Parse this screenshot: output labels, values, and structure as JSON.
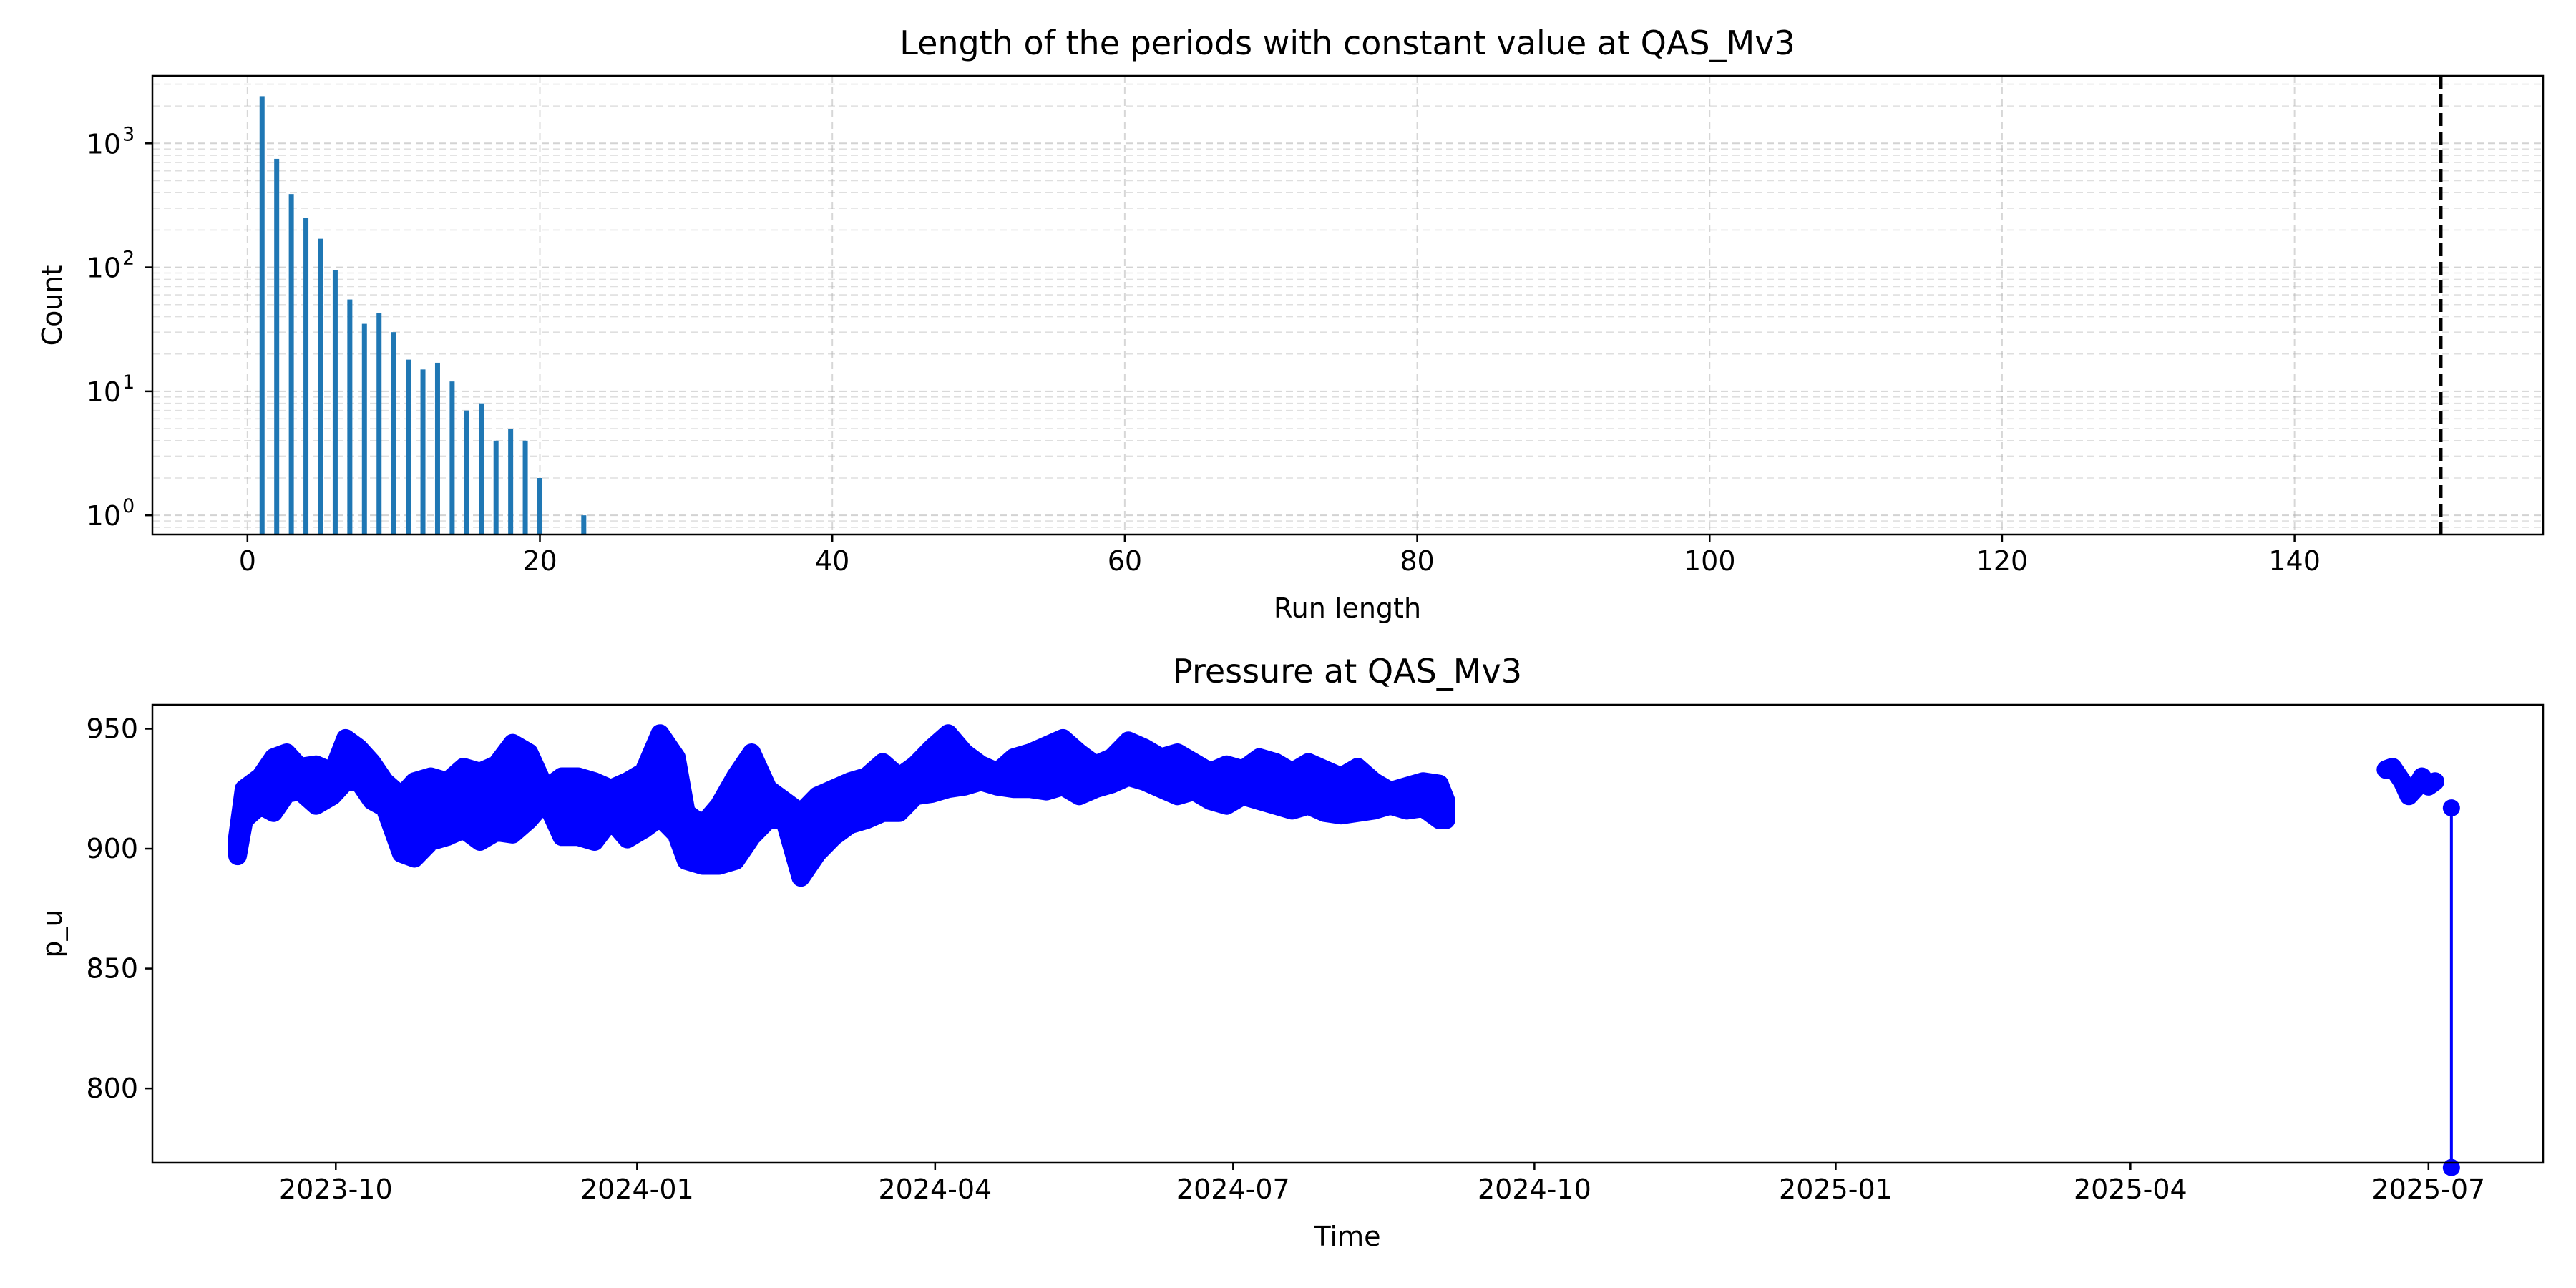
{
  "colors": {
    "bar": "#1f77b4",
    "line": "#0000ff",
    "grid": "#b0b0b0",
    "threshold": "#000000"
  },
  "chart_data": [
    {
      "type": "bar",
      "title": "Length of the periods with constant value at QAS_Mv3",
      "xlabel": "Run length",
      "ylabel": "Count",
      "yscale": "log",
      "xlim": [
        -6.5,
        157
      ],
      "ylim": [
        0.7,
        3500
      ],
      "xticks": [
        0,
        20,
        40,
        60,
        80,
        100,
        120,
        140
      ],
      "xtick_labels": [
        "0",
        "20",
        "40",
        "60",
        "80",
        "100",
        "120",
        "140"
      ],
      "yticks": [
        1,
        10,
        100,
        1000
      ],
      "ytick_labels": [
        "10",
        "10",
        "10",
        "10"
      ],
      "ytick_exponents": [
        "0",
        "1",
        "2",
        "3"
      ],
      "grid": true,
      "reference_line": {
        "x": 150,
        "style": "dashed"
      },
      "x": [
        1,
        2,
        3,
        4,
        5,
        6,
        7,
        8,
        9,
        10,
        11,
        12,
        13,
        14,
        15,
        16,
        17,
        18,
        19,
        20,
        23
      ],
      "values": [
        2400,
        750,
        390,
        250,
        170,
        95,
        55,
        35,
        43,
        30,
        18,
        15,
        17,
        12,
        7,
        8,
        4,
        5,
        4,
        2,
        1
      ]
    },
    {
      "type": "line",
      "title": "Pressure at QAS_Mv3",
      "xlabel": "Time",
      "ylabel": "p_u",
      "xlim": [
        "2023-08-06",
        "2025-08-05"
      ],
      "ylim": [
        769,
        960
      ],
      "xticks": [
        "2023-10-01",
        "2024-01-01",
        "2024-04-01",
        "2024-07-01",
        "2024-10-01",
        "2025-01-01",
        "2025-04-01",
        "2025-07-01"
      ],
      "xtick_labels": [
        "2023-10",
        "2024-01",
        "2024-04",
        "2024-07",
        "2024-10",
        "2025-01",
        "2025-04",
        "2025-07"
      ],
      "yticks": [
        800,
        850,
        900,
        950
      ],
      "ytick_labels": [
        "800",
        "850",
        "900",
        "950"
      ],
      "grid": false,
      "marker": "circle",
      "series_lower": {
        "x": [
          "2023-09-01",
          "2023-09-03",
          "2023-09-08",
          "2023-09-12",
          "2023-09-16",
          "2023-09-20",
          "2023-09-25",
          "2023-09-30",
          "2023-10-04",
          "2023-10-08",
          "2023-10-12",
          "2023-10-16",
          "2023-10-21",
          "2023-10-25",
          "2023-10-30",
          "2023-11-04",
          "2023-11-09",
          "2023-11-14",
          "2023-11-19",
          "2023-11-24",
          "2023-11-29",
          "2023-12-04",
          "2023-12-09",
          "2023-12-14",
          "2023-12-19",
          "2023-12-24",
          "2023-12-29",
          "2024-01-03",
          "2024-01-08",
          "2024-01-13",
          "2024-01-16",
          "2024-01-21",
          "2024-01-26",
          "2024-01-31",
          "2024-02-05",
          "2024-02-10",
          "2024-02-15",
          "2024-02-20",
          "2024-02-25",
          "2024-03-01",
          "2024-03-06",
          "2024-03-11",
          "2024-03-16",
          "2024-03-21",
          "2024-03-26",
          "2024-03-31",
          "2024-04-05",
          "2024-04-10",
          "2024-04-15",
          "2024-04-20",
          "2024-04-25",
          "2024-04-30",
          "2024-05-05",
          "2024-05-10",
          "2024-05-15",
          "2024-05-20",
          "2024-05-25",
          "2024-05-30",
          "2024-06-04",
          "2024-06-09",
          "2024-06-14",
          "2024-06-19",
          "2024-06-24",
          "2024-06-29",
          "2024-07-04",
          "2024-07-09",
          "2024-07-14",
          "2024-07-19",
          "2024-07-24",
          "2024-07-29",
          "2024-08-03",
          "2024-08-08",
          "2024-08-13",
          "2024-08-18",
          "2024-08-23",
          "2024-08-28",
          "2024-09-02",
          "2024-09-04"
        ],
        "y": [
          897,
          912,
          918,
          915,
          923,
          924,
          918,
          922,
          928,
          928,
          920,
          917,
          898,
          896,
          903,
          905,
          908,
          903,
          907,
          906,
          912,
          920,
          905,
          905,
          903,
          912,
          904,
          908,
          913,
          906,
          895,
          893,
          893,
          895,
          905,
          912,
          912,
          888,
          898,
          905,
          910,
          912,
          915,
          915,
          922,
          923,
          925,
          926,
          928,
          926,
          925,
          925,
          924,
          926,
          922,
          925,
          927,
          930,
          928,
          925,
          922,
          924,
          920,
          918,
          922,
          920,
          918,
          916,
          918,
          915,
          914,
          915,
          916,
          918,
          916,
          917,
          912,
          912
        ]
      },
      "series_upper": {
        "x": [
          "2023-09-01",
          "2023-09-03",
          "2023-09-08",
          "2023-09-12",
          "2023-09-16",
          "2023-09-20",
          "2023-09-25",
          "2023-09-30",
          "2023-10-04",
          "2023-10-08",
          "2023-10-12",
          "2023-10-16",
          "2023-10-21",
          "2023-10-25",
          "2023-10-30",
          "2023-11-04",
          "2023-11-09",
          "2023-11-14",
          "2023-11-19",
          "2023-11-24",
          "2023-11-29",
          "2023-12-04",
          "2023-12-09",
          "2023-12-14",
          "2023-12-19",
          "2023-12-24",
          "2023-12-29",
          "2024-01-03",
          "2024-01-08",
          "2024-01-13",
          "2024-01-16",
          "2024-01-21",
          "2024-01-26",
          "2024-01-31",
          "2024-02-05",
          "2024-02-10",
          "2024-02-15",
          "2024-02-20",
          "2024-02-25",
          "2024-03-01",
          "2024-03-06",
          "2024-03-11",
          "2024-03-16",
          "2024-03-21",
          "2024-03-26",
          "2024-03-31",
          "2024-04-05",
          "2024-04-10",
          "2024-04-15",
          "2024-04-20",
          "2024-04-25",
          "2024-04-30",
          "2024-05-05",
          "2024-05-10",
          "2024-05-15",
          "2024-05-20",
          "2024-05-25",
          "2024-05-30",
          "2024-06-04",
          "2024-06-09",
          "2024-06-14",
          "2024-06-19",
          "2024-06-24",
          "2024-06-29",
          "2024-07-04",
          "2024-07-09",
          "2024-07-14",
          "2024-07-19",
          "2024-07-24",
          "2024-07-29",
          "2024-08-03",
          "2024-08-08",
          "2024-08-13",
          "2024-08-18",
          "2024-08-23",
          "2024-08-28",
          "2024-09-02",
          "2024-09-04"
        ],
        "y": [
          905,
          925,
          930,
          938,
          940,
          934,
          935,
          932,
          946,
          942,
          936,
          928,
          922,
          928,
          930,
          928,
          934,
          932,
          935,
          944,
          940,
          925,
          930,
          930,
          928,
          925,
          928,
          932,
          948,
          938,
          915,
          910,
          918,
          930,
          940,
          925,
          920,
          915,
          922,
          925,
          928,
          930,
          936,
          930,
          935,
          942,
          948,
          940,
          935,
          932,
          938,
          940,
          943,
          946,
          940,
          935,
          938,
          945,
          942,
          938,
          940,
          936,
          932,
          935,
          933,
          938,
          936,
          932,
          936,
          933,
          930,
          934,
          928,
          924,
          926,
          928,
          927,
          920
        ]
      },
      "late_segment": {
        "x": [
          "2025-06-18",
          "2025-06-20",
          "2025-06-23",
          "2025-06-25",
          "2025-06-27",
          "2025-06-29",
          "2025-07-01",
          "2025-07-03"
        ],
        "y": [
          933,
          934,
          928,
          922,
          925,
          930,
          926,
          928
        ]
      },
      "final_drop": {
        "x": [
          "2025-07-08",
          "2025-07-08"
        ],
        "y": [
          917,
          767
        ]
      }
    }
  ]
}
